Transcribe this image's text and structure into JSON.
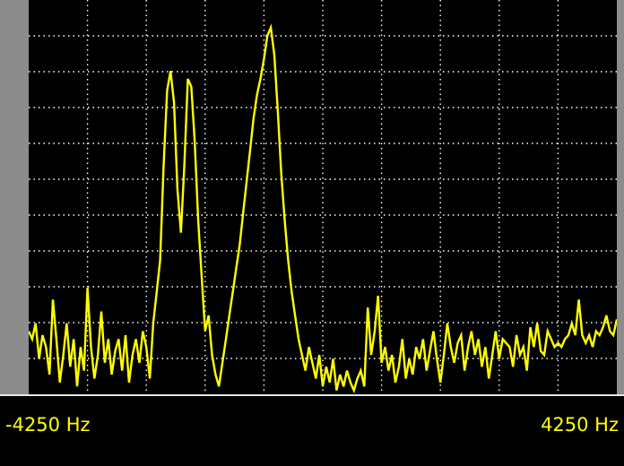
{
  "chart_data": {
    "type": "line",
    "title": "",
    "xlabel": "",
    "ylabel": "",
    "x_unit": "Hz",
    "xlim": [
      -4250,
      4250
    ],
    "ylim": [
      0,
      100
    ],
    "grid": true,
    "tick_labels": {
      "left": "-4250 Hz",
      "right": "4250 Hz"
    },
    "colors": {
      "trace": "#ffff00",
      "grid": "#ffffff",
      "background": "#000000",
      "frame": "#8c8c8c"
    },
    "series": [
      {
        "x": [
          -4250,
          -4200,
          -4150,
          -4100,
          -4050,
          -4000,
          -3950,
          -3900,
          -3850,
          -3800,
          -3750,
          -3700,
          -3650,
          -3600,
          -3550,
          -3500,
          -3450,
          -3400,
          -3350,
          -3300,
          -3250,
          -3200,
          -3150,
          -3100,
          -3050,
          -3000,
          -2950,
          -2900,
          -2850,
          -2800,
          -2750,
          -2700,
          -2650,
          -2600,
          -2550,
          -2500,
          -2450,
          -2400,
          -2350,
          -2300,
          -2250,
          -2200,
          -2150,
          -2100,
          -2050,
          -2000,
          -1950,
          -1900,
          -1850,
          -1800,
          -1750,
          -1700,
          -1650,
          -1600,
          -1550,
          -1500,
          -1450,
          -1400,
          -1350,
          -1300,
          -1250,
          -1200,
          -1150,
          -1100,
          -1050,
          -1000,
          -950,
          -900,
          -850,
          -800,
          -750,
          -700,
          -650,
          -600,
          -550,
          -500,
          -450,
          -400,
          -350,
          -300,
          -250,
          -200,
          -150,
          -100,
          -50,
          0,
          50,
          100,
          150,
          200,
          250,
          300,
          350,
          400,
          450,
          500,
          550,
          600,
          650,
          700,
          750,
          800,
          850,
          900,
          950,
          1000,
          1050,
          1100,
          1150,
          1200,
          1250,
          1300,
          1350,
          1400,
          1450,
          1500,
          1550,
          1600,
          1650,
          1700,
          1750,
          1800,
          1850,
          1900,
          1950,
          2000,
          2050,
          2100,
          2150,
          2200,
          2250,
          2300,
          2350,
          2400,
          2450,
          2500,
          2550,
          2600,
          2650,
          2700,
          2750,
          2800,
          2850,
          2900,
          2950,
          3000,
          3050,
          3100,
          3150,
          3200,
          3250,
          3300,
          3350,
          3400,
          3450,
          3500,
          3550,
          3600,
          3650,
          3700,
          3750,
          3800,
          3850,
          3900,
          3950,
          4000,
          4050,
          4100,
          4150,
          4200,
          4250
        ],
        "values": [
          16,
          14,
          18,
          9,
          15,
          12,
          5,
          24,
          14,
          3,
          10,
          18,
          7,
          14,
          2,
          12,
          6,
          27,
          12,
          4,
          10,
          21,
          8,
          14,
          5,
          11,
          14,
          6,
          15,
          3,
          10,
          14,
          8,
          16,
          12,
          4,
          18,
          26,
          34,
          58,
          77,
          82,
          74,
          52,
          41,
          58,
          80,
          78,
          64,
          44,
          30,
          16,
          20,
          10,
          5,
          2,
          8,
          14,
          20,
          26,
          32,
          38,
          46,
          54,
          62,
          70,
          76,
          80,
          85,
          91,
          93,
          86,
          72,
          56,
          44,
          34,
          26,
          20,
          14,
          10,
          6,
          12,
          8,
          4,
          10,
          2,
          7,
          3,
          9,
          1,
          5,
          2,
          6,
          3,
          1,
          4,
          6,
          2,
          22,
          10,
          16,
          25,
          8,
          12,
          6,
          10,
          3,
          7,
          14,
          4,
          9,
          5,
          12,
          9,
          14,
          6,
          11,
          16,
          9,
          3,
          10,
          18,
          12,
          8,
          13,
          15,
          6,
          12,
          16,
          10,
          14,
          7,
          12,
          4,
          10,
          16,
          9,
          14,
          13,
          12,
          7,
          15,
          10,
          12,
          6,
          17,
          12,
          18,
          11,
          10,
          16,
          14,
          12,
          13,
          12,
          14,
          15,
          18,
          15,
          24,
          15,
          13,
          15,
          12,
          16,
          15,
          17,
          20,
          16,
          15,
          19
        ]
      }
    ]
  }
}
